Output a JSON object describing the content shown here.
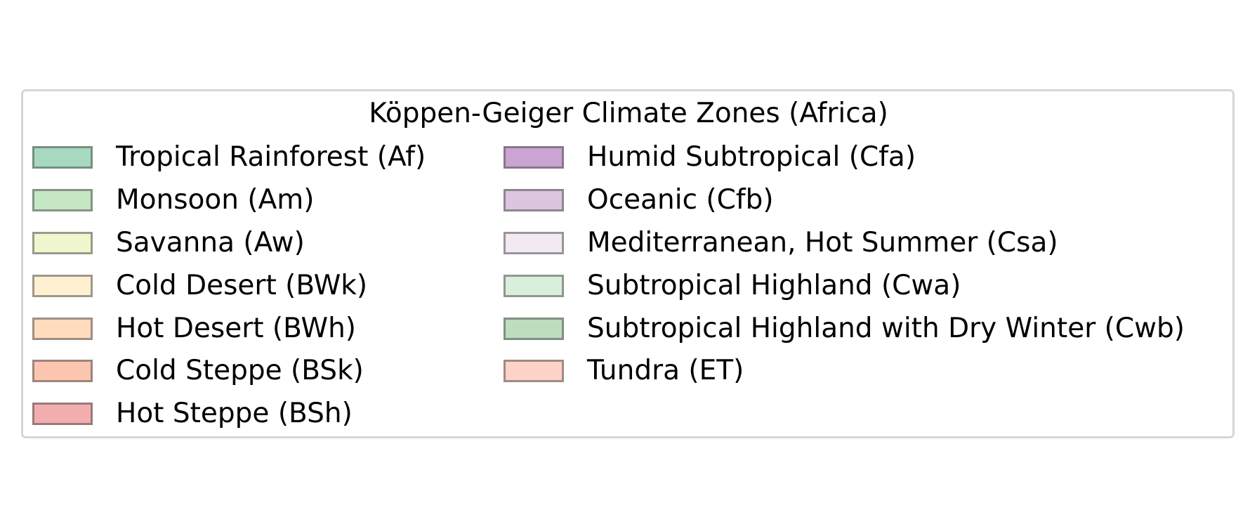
{
  "legend": {
    "title": "Köppen-Geiger Climate Zones (Africa)",
    "columns": [
      [
        {
          "label": "Tropical Rainforest (Af)",
          "color": "#a7d9c1"
        },
        {
          "label": "Monsoon (Am)",
          "color": "#c6e7c4"
        },
        {
          "label": "Savanna (Aw)",
          "color": "#f0f7cf"
        },
        {
          "label": "Cold Desert (BWk)",
          "color": "#fff0d1"
        },
        {
          "label": "Hot Desert (BWh)",
          "color": "#ffdcbe"
        },
        {
          "label": "Cold Steppe (BSk)",
          "color": "#fbc5b0"
        },
        {
          "label": "Hot Steppe (BSh)",
          "color": "#f2aeae"
        }
      ],
      [
        {
          "label": "Humid Subtropical (Cfa)",
          "color": "#caa4d2"
        },
        {
          "label": "Oceanic (Cfb)",
          "color": "#dbc5df"
        },
        {
          "label": "Mediterranean, Hot Summer (Csa)",
          "color": "#f3e9f3"
        },
        {
          "label": "Subtropical Highland (Cwa)",
          "color": "#daefdb"
        },
        {
          "label": "Subtropical Highland with Dry Winter (Cwb)",
          "color": "#bcddbe"
        },
        {
          "label": "Tundra (ET)",
          "color": "#fdd2c7"
        }
      ]
    ]
  }
}
